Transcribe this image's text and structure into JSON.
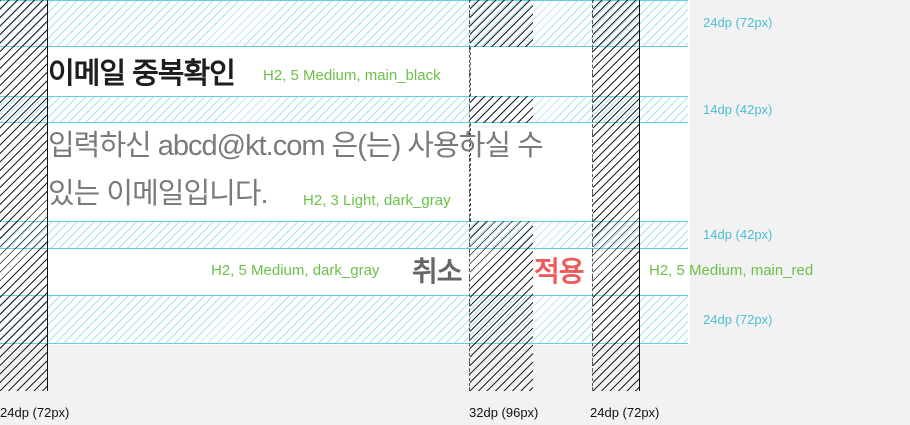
{
  "dialog": {
    "title": "이메일 중복확인",
    "message_line1": "입력하신 abcd@kt.com 은(는) 사용하실 수",
    "message_line2": "있는 이메일입니다.",
    "cancel_label": "취소",
    "apply_label": "적용"
  },
  "annotations": {
    "title_spec": "H2, 5 Medium, main_black",
    "message_spec": "H2, 3 Light, dark_gray",
    "cancel_spec": "H2, 5 Medium, dark_gray",
    "apply_spec": "H2, 5 Medium, main_red"
  },
  "dimensions": {
    "top_padding": "24dp (72px)",
    "title_gap": "14dp (42px)",
    "message_gap": "14dp (42px)",
    "bottom_padding": "24dp (72px)",
    "left_margin": "24dp (72px)",
    "button_gap": "32dp (96px)",
    "right_margin": "24dp (72px)"
  },
  "colors": {
    "main_black": "#1e1e1e",
    "dark_gray": "#666666",
    "main_red": "#ef5a5a",
    "guide_cyan": "#63cfe0",
    "spec_green": "#6cc04a"
  }
}
